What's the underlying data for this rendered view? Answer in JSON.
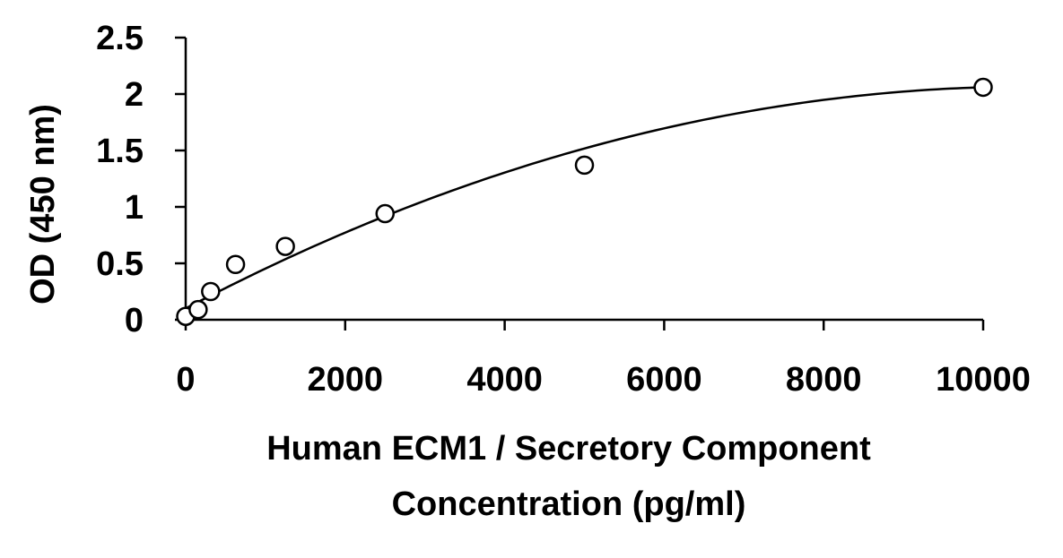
{
  "chart_data": {
    "type": "scatter",
    "title": "",
    "xlabel_lines": [
      "Human ECM1 / Secretory Component",
      "Concentration (pg/ml)"
    ],
    "ylabel": "OD (450 nm)",
    "xlim": [
      0,
      10000
    ],
    "ylim": [
      0,
      2.5
    ],
    "x_ticks": [
      0,
      2000,
      4000,
      6000,
      8000,
      10000
    ],
    "x_tick_labels": [
      "0",
      "2000",
      "4000",
      "6000",
      "8000",
      "10000"
    ],
    "y_ticks": [
      0,
      0.5,
      1,
      1.5,
      2,
      2.5
    ],
    "y_tick_labels": [
      "0",
      "0.5",
      "1",
      "1.5",
      "2",
      "2.5"
    ],
    "grid": false,
    "legend": "none",
    "series": [
      {
        "marker": "open-circle",
        "x": [
          0,
          156,
          313,
          625,
          1250,
          2500,
          5000,
          10000
        ],
        "y": [
          0.03,
          0.09,
          0.25,
          0.49,
          0.65,
          0.94,
          1.37,
          2.06
        ]
      }
    ],
    "fit_curve": {
      "type": "quadratic",
      "coefficients": [
        0.1,
        0.000371,
        -1.75e-08
      ]
    },
    "colors": {
      "axis": "#000000",
      "curve": "#000000",
      "marker_stroke": "#000000",
      "marker_fill": "#ffffff"
    }
  }
}
